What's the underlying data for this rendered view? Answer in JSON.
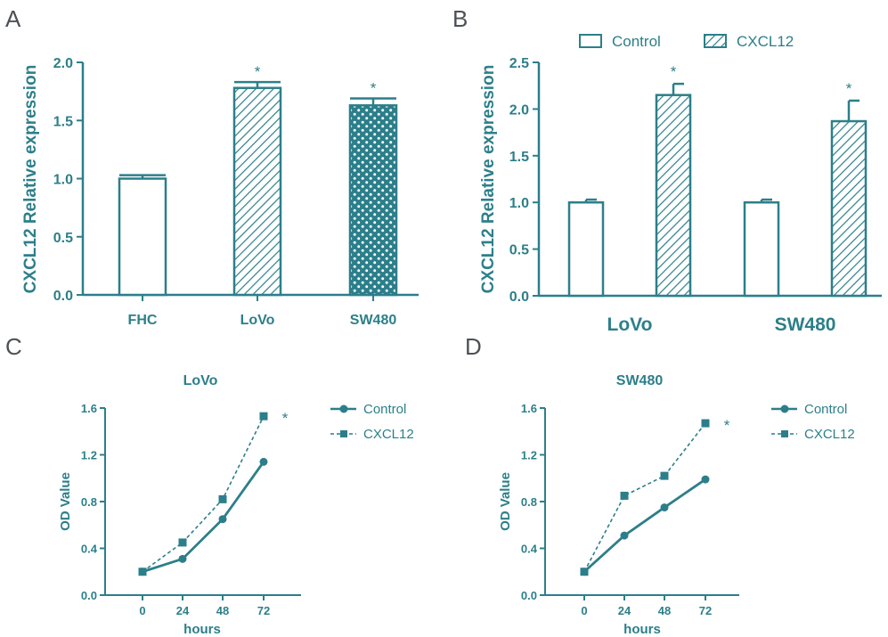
{
  "colors": {
    "teal": "#2c7f8a",
    "panel_letter": "#4d5156",
    "background": "#ffffff"
  },
  "panel_letters": [
    "A",
    "B",
    "C",
    "D"
  ],
  "chart_data": [
    {
      "panel": "A",
      "type": "bar",
      "ylabel": "CXCL12 Relative expression",
      "ylim": [
        0,
        2.0
      ],
      "yticks": [
        "0.0",
        "0.5",
        "1.0",
        "1.5",
        "2.0"
      ],
      "categories": [
        "FHC",
        "LoVo",
        "SW480"
      ],
      "values": [
        1.0,
        1.78,
        1.63
      ],
      "errors": [
        0.03,
        0.05,
        0.06
      ],
      "patterns": [
        "empty",
        "hatch",
        "dots"
      ],
      "significance": [
        "",
        "*",
        "*"
      ]
    },
    {
      "panel": "B",
      "type": "bar",
      "ylabel": "CXCL12 Relative expression",
      "ylim": [
        0,
        2.5
      ],
      "yticks": [
        "0.0",
        "0.5",
        "1.0",
        "1.5",
        "2.0",
        "2.5"
      ],
      "categories": [
        "LoVo",
        "SW480"
      ],
      "legend_position": "top",
      "series": [
        {
          "name": "Control",
          "values": [
            1.0,
            1.0
          ],
          "errors": [
            0.03,
            0.03
          ],
          "pattern": "empty",
          "significance": [
            "",
            ""
          ]
        },
        {
          "name": "CXCL12",
          "values": [
            2.15,
            1.87
          ],
          "errors": [
            0.12,
            0.22
          ],
          "pattern": "hatch",
          "significance": [
            "*",
            "*"
          ]
        }
      ]
    },
    {
      "panel": "C",
      "type": "line",
      "title": "LoVo",
      "xlabel": "hours",
      "ylabel": "OD Value",
      "x": [
        0,
        24,
        48,
        72
      ],
      "xticks": [
        "0",
        "24",
        "48",
        "72"
      ],
      "ylim": [
        0,
        1.6
      ],
      "yticks": [
        "0.0",
        "0.4",
        "0.8",
        "1.2",
        "1.6"
      ],
      "legend_position": "right",
      "series": [
        {
          "name": "Control",
          "values": [
            0.2,
            0.31,
            0.65,
            1.14
          ],
          "style": "solid",
          "marker": "circle"
        },
        {
          "name": "CXCL12",
          "values": [
            0.2,
            0.45,
            0.82,
            1.53
          ],
          "style": "dashed",
          "marker": "square"
        }
      ],
      "significance": "*"
    },
    {
      "panel": "D",
      "type": "line",
      "title": "SW480",
      "xlabel": "hours",
      "ylabel": "OD Value",
      "x": [
        0,
        24,
        48,
        72
      ],
      "xticks": [
        "0",
        "24",
        "48",
        "72"
      ],
      "ylim": [
        0,
        1.6
      ],
      "yticks": [
        "0.0",
        "0.4",
        "0.8",
        "1.2",
        "1.6"
      ],
      "legend_position": "right",
      "series": [
        {
          "name": "Control",
          "values": [
            0.2,
            0.51,
            0.75,
            0.99
          ],
          "style": "solid",
          "marker": "circle"
        },
        {
          "name": "CXCL12",
          "values": [
            0.2,
            0.85,
            1.02,
            1.47
          ],
          "style": "dashed",
          "marker": "square"
        }
      ],
      "significance": "*"
    }
  ]
}
